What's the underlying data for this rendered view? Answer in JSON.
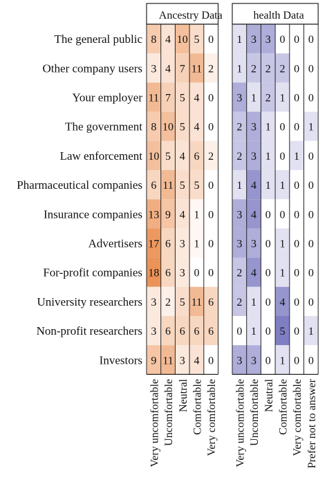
{
  "chart_data": {
    "type": "heatmap",
    "rows": [
      "The general public",
      "Other company users",
      "Your employer",
      "The government",
      "Law enforcement",
      "Pharmaceutical companies",
      "Insurance companies",
      "Advertisers",
      "For-profit companies",
      "University researchers",
      "Non-profit researchers",
      "Investors"
    ],
    "panels": [
      {
        "title": "Ancestry Data",
        "color": "#e8803a",
        "columns": [
          "Very uncomfortable",
          "Uncomfortable",
          "Neutral",
          "Comfortable",
          "Very comfortable"
        ],
        "values": [
          [
            8,
            4,
            10,
            5,
            0
          ],
          [
            3,
            4,
            7,
            11,
            2
          ],
          [
            11,
            7,
            5,
            4,
            0
          ],
          [
            8,
            10,
            5,
            4,
            0
          ],
          [
            10,
            5,
            4,
            6,
            2
          ],
          [
            6,
            11,
            5,
            5,
            0
          ],
          [
            13,
            9,
            4,
            1,
            0
          ],
          [
            17,
            6,
            3,
            1,
            0
          ],
          [
            18,
            6,
            3,
            0,
            0
          ],
          [
            3,
            2,
            5,
            11,
            6
          ],
          [
            3,
            6,
            6,
            6,
            6
          ],
          [
            9,
            11,
            3,
            4,
            0
          ]
        ]
      },
      {
        "title": "health Data",
        "color": "#6a67b8",
        "columns": [
          "Very uncomfortable",
          "Uncomfortable",
          "Neutral",
          "Comfortable",
          "Very comfortable",
          "Prefer not to answer"
        ],
        "values": [
          [
            1,
            3,
            3,
            0,
            0,
            0
          ],
          [
            1,
            2,
            2,
            2,
            0,
            0
          ],
          [
            3,
            1,
            2,
            1,
            0,
            0
          ],
          [
            2,
            3,
            1,
            0,
            0,
            1
          ],
          [
            2,
            3,
            1,
            0,
            1,
            0
          ],
          [
            1,
            4,
            1,
            1,
            0,
            0
          ],
          [
            3,
            4,
            0,
            0,
            0,
            0
          ],
          [
            3,
            3,
            0,
            1,
            0,
            0
          ],
          [
            2,
            4,
            0,
            1,
            0,
            0
          ],
          [
            2,
            1,
            0,
            4,
            0,
            0
          ],
          [
            0,
            1,
            0,
            5,
            0,
            1
          ],
          [
            3,
            3,
            0,
            1,
            0,
            0
          ]
        ]
      }
    ]
  }
}
